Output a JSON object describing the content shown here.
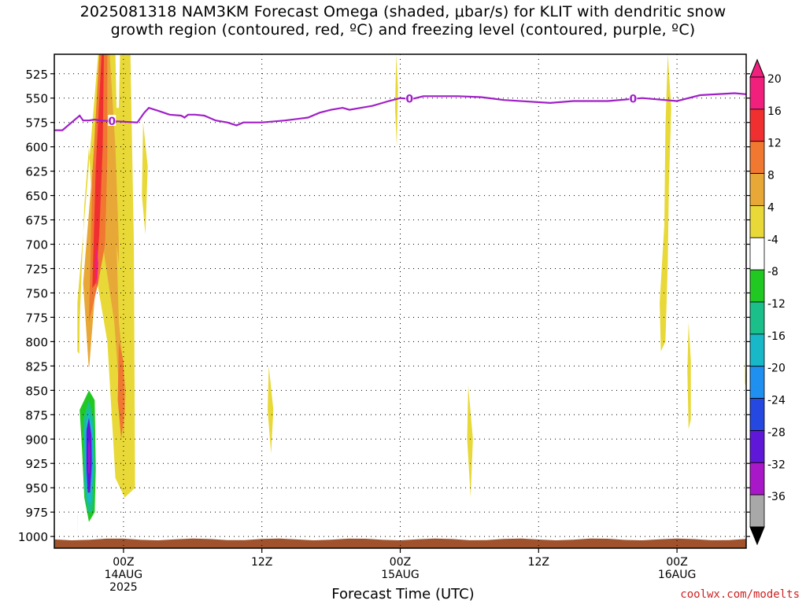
{
  "title_line1": "2025081318 NAM3KM Forecast Omega (shaded, μbar/s) for KLIT with dendritic snow",
  "title_line2": "growth region (contoured, red, ºC) and freezing level (contoured, purple, ºC)",
  "xlabel": "Forecast Time (UTC)",
  "credit": "coolwx.com/modelts",
  "chart_data": {
    "type": "heatmap",
    "x_ticks": [
      {
        "hours": 6,
        "label1": "00Z",
        "label2": "14AUG",
        "label3": "2025"
      },
      {
        "hours": 18,
        "label1": "12Z",
        "label2": "",
        "label3": ""
      },
      {
        "hours": 30,
        "label1": "00Z",
        "label2": "15AUG",
        "label3": ""
      },
      {
        "hours": 42,
        "label1": "12Z",
        "label2": "",
        "label3": ""
      },
      {
        "hours": 54,
        "label1": "00Z",
        "label2": "16AUG",
        "label3": ""
      }
    ],
    "x_range_hours": [
      0,
      60
    ],
    "y_ticks": [
      525,
      550,
      575,
      600,
      625,
      650,
      675,
      700,
      725,
      750,
      775,
      800,
      825,
      850,
      875,
      900,
      925,
      950,
      975,
      1000
    ],
    "y_range_hpa": [
      1012,
      505
    ],
    "colorbar": {
      "labels": [
        "20",
        "16",
        "12",
        "8",
        "4",
        "-4",
        "-8",
        "-12",
        "-16",
        "-20",
        "-24",
        "-28",
        "-32",
        "-36"
      ],
      "colors": [
        "#f0207c",
        "#f03030",
        "#f07830",
        "#e8a838",
        "#e8d838",
        "#ffffff",
        "#22c822",
        "#1abf8a",
        "#18b8c8",
        "#2090f0",
        "#2448e0",
        "#6018d8",
        "#a818c8",
        "#a8a8a8"
      ]
    },
    "freezing_level": {
      "label": "0",
      "points": [
        [
          0,
          583
        ],
        [
          0.7,
          583
        ],
        [
          1.7,
          573
        ],
        [
          2.2,
          568
        ],
        [
          2.5,
          573
        ],
        [
          3.0,
          573
        ],
        [
          3.5,
          572
        ],
        [
          4.0,
          573
        ],
        [
          7.2,
          575
        ],
        [
          7.8,
          565
        ],
        [
          8.2,
          560
        ],
        [
          9.0,
          563
        ],
        [
          10.0,
          567
        ],
        [
          11.0,
          568
        ],
        [
          11.3,
          570
        ],
        [
          11.6,
          567
        ],
        [
          12.2,
          567
        ],
        [
          13.0,
          568
        ],
        [
          14.0,
          573
        ],
        [
          15.0,
          575
        ],
        [
          15.8,
          578
        ],
        [
          16.4,
          575
        ],
        [
          18.0,
          575
        ],
        [
          20.0,
          573
        ],
        [
          22.0,
          570
        ],
        [
          23.0,
          565
        ],
        [
          24.0,
          562
        ],
        [
          25.0,
          560
        ],
        [
          25.6,
          562
        ],
        [
          26.6,
          560
        ],
        [
          27.6,
          558
        ],
        [
          29.0,
          553
        ],
        [
          30.0,
          550
        ],
        [
          31.0,
          551
        ],
        [
          32.0,
          548
        ],
        [
          35.0,
          548
        ],
        [
          37.0,
          549
        ],
        [
          39.0,
          552
        ],
        [
          43.0,
          555
        ],
        [
          45.0,
          553
        ],
        [
          48.0,
          553
        ],
        [
          51.0,
          550
        ],
        [
          54.0,
          553
        ],
        [
          56.0,
          547
        ],
        [
          59.0,
          545
        ],
        [
          60.0,
          546
        ]
      ],
      "label_positions_hours": [
        5.0,
        30.8,
        50.2
      ]
    },
    "omega_regions": [
      {
        "value": 4,
        "poly": [
          [
            2.0,
            1000
          ],
          [
            2.0,
            760
          ],
          [
            3.8,
            505
          ],
          [
            6.6,
            505
          ],
          [
            6.9,
            700
          ],
          [
            7.0,
            950
          ],
          [
            6.1,
            960
          ],
          [
            5.3,
            940
          ],
          [
            5.1,
            900
          ],
          [
            4.6,
            800
          ],
          [
            3.6,
            730
          ],
          [
            3.0,
            600
          ],
          [
            2.6,
            660
          ],
          [
            2.2,
            780
          ]
        ]
      },
      {
        "value": 8,
        "poly": [
          [
            3.0,
            830
          ],
          [
            2.5,
            740
          ],
          [
            3.4,
            610
          ],
          [
            4.0,
            505
          ],
          [
            4.8,
            505
          ],
          [
            5.3,
            600
          ],
          [
            5.6,
            700
          ],
          [
            5.6,
            720
          ],
          [
            5.4,
            700
          ],
          [
            5.6,
            780
          ],
          [
            6.2,
            850
          ],
          [
            6.0,
            900
          ],
          [
            5.7,
            860
          ],
          [
            5.2,
            780
          ],
          [
            4.2,
            700
          ],
          [
            3.6,
            740
          ]
        ]
      },
      {
        "value": 12,
        "poly": [
          [
            3.0,
            780
          ],
          [
            3.3,
            630
          ],
          [
            3.9,
            505
          ],
          [
            4.6,
            505
          ],
          [
            4.6,
            610
          ],
          [
            4.4,
            700
          ],
          [
            3.8,
            740
          ],
          [
            3.4,
            760
          ]
        ]
      },
      {
        "value": 12,
        "poly": [
          [
            5.6,
            800
          ],
          [
            6.0,
            820
          ],
          [
            6.1,
            870
          ],
          [
            5.8,
            900
          ],
          [
            5.5,
            860
          ]
        ]
      },
      {
        "value": 16,
        "poly": [
          [
            3.3,
            745
          ],
          [
            3.6,
            620
          ],
          [
            4.1,
            505
          ],
          [
            4.3,
            505
          ],
          [
            4.2,
            600
          ],
          [
            3.9,
            690
          ],
          [
            3.6,
            740
          ]
        ]
      },
      {
        "value": 20,
        "poly": [
          [
            3.5,
            720
          ],
          [
            3.7,
            700
          ],
          [
            3.8,
            720
          ],
          [
            3.7,
            745
          ]
        ]
      },
      {
        "value": 4,
        "poly": [
          [
            7.7,
            575
          ],
          [
            8.1,
            620
          ],
          [
            7.9,
            690
          ],
          [
            7.6,
            650
          ]
        ]
      },
      {
        "value": 4,
        "poly": [
          [
            18.6,
            825
          ],
          [
            19.0,
            870
          ],
          [
            18.8,
            915
          ],
          [
            18.5,
            870
          ]
        ]
      },
      {
        "value": 4,
        "poly": [
          [
            29.65,
            500
          ],
          [
            29.8,
            540
          ],
          [
            29.7,
            600
          ],
          [
            29.55,
            560
          ]
        ]
      },
      {
        "value": 4,
        "poly": [
          [
            35.9,
            845
          ],
          [
            36.3,
            900
          ],
          [
            36.1,
            960
          ],
          [
            35.8,
            900
          ]
        ]
      },
      {
        "value": 4,
        "poly": [
          [
            53.2,
            505
          ],
          [
            53.5,
            560
          ],
          [
            53.3,
            640
          ],
          [
            53.2,
            720
          ],
          [
            53.0,
            800
          ],
          [
            52.6,
            810
          ],
          [
            52.5,
            760
          ],
          [
            52.9,
            680
          ],
          [
            53.0,
            580
          ]
        ]
      },
      {
        "value": 4,
        "poly": [
          [
            55.0,
            780
          ],
          [
            55.2,
            820
          ],
          [
            55.2,
            880
          ],
          [
            55.0,
            890
          ],
          [
            54.9,
            830
          ]
        ]
      },
      {
        "value": 4,
        "poly": [
          [
            59.9,
            820
          ],
          [
            60.0,
            840
          ],
          [
            59.9,
            845
          ]
        ]
      },
      {
        "value": -4,
        "poly": [
          [
            0.0,
            505
          ],
          [
            0.35,
            505
          ],
          [
            0.4,
            700
          ],
          [
            0.2,
            800
          ],
          [
            0.1,
            900
          ],
          [
            0.0,
            1000
          ]
        ]
      },
      {
        "value": -4,
        "poly": [
          [
            1.5,
            505
          ],
          [
            2.0,
            505
          ],
          [
            1.9,
            600
          ],
          [
            1.6,
            650
          ],
          [
            1.4,
            560
          ]
        ]
      },
      {
        "value": -4,
        "poly": [
          [
            5.3,
            505
          ],
          [
            5.7,
            505
          ],
          [
            5.6,
            560
          ],
          [
            5.4,
            560
          ]
        ]
      },
      {
        "value": -4,
        "poly": [
          [
            0.0,
            840
          ],
          [
            1.2,
            820
          ],
          [
            2.0,
            810
          ],
          [
            3.3,
            830
          ],
          [
            3.8,
            800
          ],
          [
            4.0,
            860
          ],
          [
            4.0,
            950
          ],
          [
            3.8,
            990
          ],
          [
            2.2,
            985
          ],
          [
            1.8,
            970
          ],
          [
            1.2,
            950
          ],
          [
            0.0,
            955
          ]
        ]
      },
      {
        "value": -4,
        "poly": [
          [
            27.7,
            860
          ],
          [
            28.3,
            880
          ],
          [
            28.4,
            940
          ],
          [
            27.8,
            945
          ],
          [
            27.6,
            900
          ]
        ]
      },
      {
        "value": -4,
        "poly": [
          [
            36.6,
            925
          ],
          [
            37.1,
            930
          ],
          [
            37.2,
            970
          ],
          [
            36.9,
            970
          ],
          [
            36.7,
            945
          ]
        ]
      },
      {
        "value": -4,
        "poly": [
          [
            38.9,
            862
          ],
          [
            39.3,
            900
          ],
          [
            39.2,
            970
          ],
          [
            38.9,
            970
          ],
          [
            38.8,
            910
          ]
        ]
      },
      {
        "value": -4,
        "poly": [
          [
            51.6,
            905
          ],
          [
            51.9,
            905
          ],
          [
            52.1,
            945
          ],
          [
            51.8,
            960
          ],
          [
            51.5,
            935
          ]
        ]
      },
      {
        "value": -4,
        "poly": [
          [
            59.2,
            910
          ],
          [
            59.4,
            918
          ],
          [
            59.3,
            928
          ],
          [
            59.15,
            920
          ]
        ]
      },
      {
        "value": -8,
        "poly": [
          [
            2.2,
            870
          ],
          [
            3.0,
            850
          ],
          [
            3.5,
            860
          ],
          [
            3.6,
            930
          ],
          [
            3.5,
            975
          ],
          [
            3.0,
            985
          ],
          [
            2.6,
            960
          ],
          [
            2.4,
            910
          ]
        ]
      },
      {
        "value": -12,
        "poly": [
          [
            2.5,
            880
          ],
          [
            3.0,
            860
          ],
          [
            3.4,
            880
          ],
          [
            3.5,
            930
          ],
          [
            3.3,
            975
          ],
          [
            2.9,
            975
          ],
          [
            2.6,
            950
          ]
        ]
      },
      {
        "value": -16,
        "poly": [
          [
            2.6,
            890
          ],
          [
            3.0,
            870
          ],
          [
            3.35,
            890
          ],
          [
            3.4,
            930
          ],
          [
            3.2,
            965
          ],
          [
            2.9,
            965
          ],
          [
            2.7,
            940
          ]
        ]
      },
      {
        "value": -20,
        "poly": [
          [
            2.7,
            895
          ],
          [
            3.0,
            880
          ],
          [
            3.3,
            900
          ],
          [
            3.3,
            930
          ],
          [
            3.1,
            955
          ],
          [
            2.9,
            955
          ],
          [
            2.75,
            935
          ]
        ]
      },
      {
        "value": -28,
        "poly": [
          [
            2.8,
            890
          ],
          [
            3.0,
            878
          ],
          [
            3.2,
            895
          ],
          [
            3.25,
            925
          ],
          [
            3.1,
            955
          ],
          [
            2.9,
            955
          ],
          [
            2.8,
            930
          ]
        ]
      },
      {
        "value": -32,
        "poly": [
          [
            2.95,
            905
          ],
          [
            3.05,
            900
          ],
          [
            3.1,
            915
          ],
          [
            3.05,
            935
          ],
          [
            2.95,
            935
          ]
        ]
      }
    ],
    "surface_layer": {
      "color": "#a0522d",
      "top_hpa": 1003
    }
  }
}
